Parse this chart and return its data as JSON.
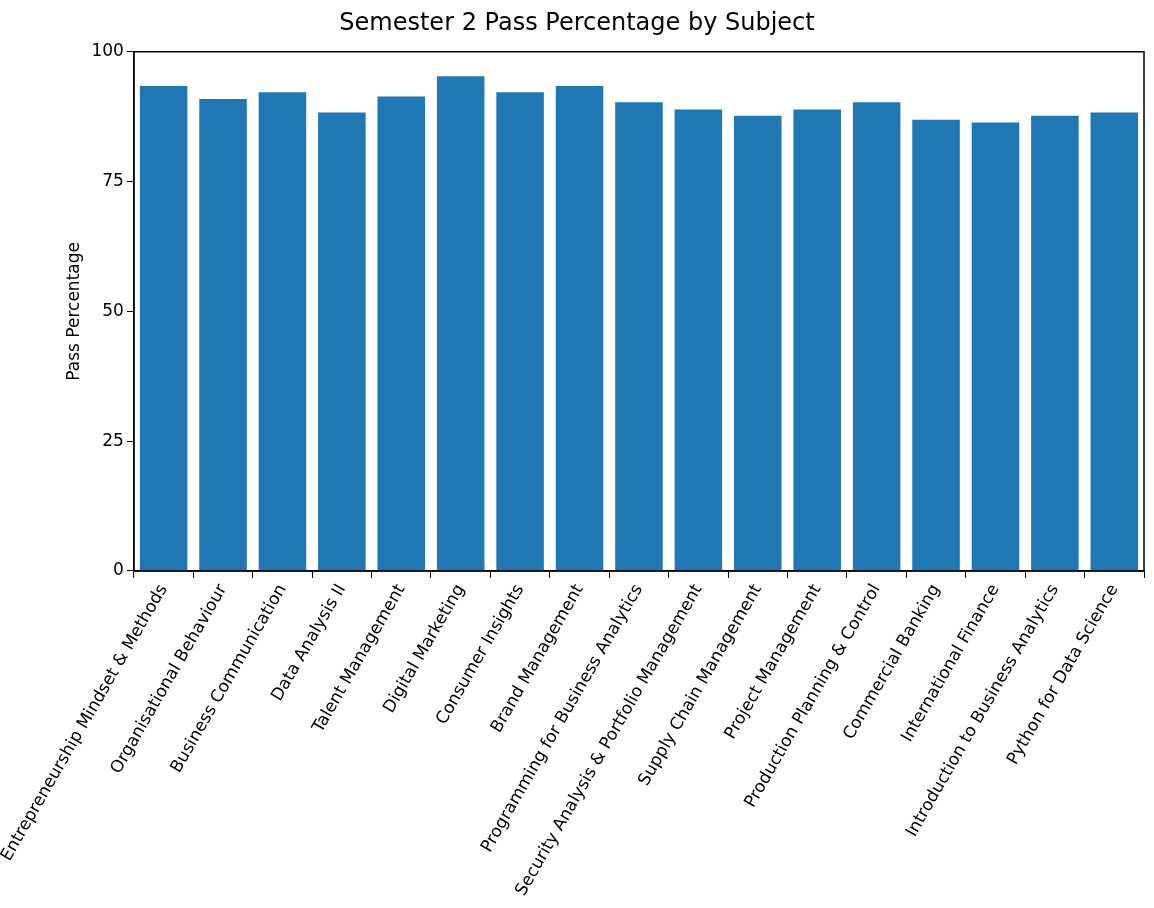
{
  "chart_data": {
    "type": "bar",
    "title": "Semester 2 Pass Percentage by Subject",
    "ylabel": "Pass Percentage",
    "categories": [
      "Entrepreneurship Mindset & Methods",
      "Organisational Behaviour",
      "Business Communication",
      "Data Analysis II",
      "Talent Management",
      "Digital Marketing",
      "Consumer Insights",
      "Brand Management",
      "Programming for Business Analytics",
      "Security Analysis & Portfolio Management",
      "Supply Chain Management",
      "Project Management",
      "Production Planning & Control",
      "Commercial Banking",
      "International Finance",
      "Introduction to Business Analytics",
      "Python for Data Science"
    ],
    "values": [
      93.4,
      90.9,
      92.2,
      88.3,
      91.4,
      95.3,
      92.2,
      93.4,
      90.3,
      88.9,
      87.7,
      88.9,
      90.3,
      86.9,
      86.4,
      87.7,
      88.3
    ],
    "color": "#1f77b4",
    "ylim": [
      0,
      100
    ],
    "yticks": [
      0,
      25,
      50,
      75,
      100
    ],
    "grid": false
  }
}
